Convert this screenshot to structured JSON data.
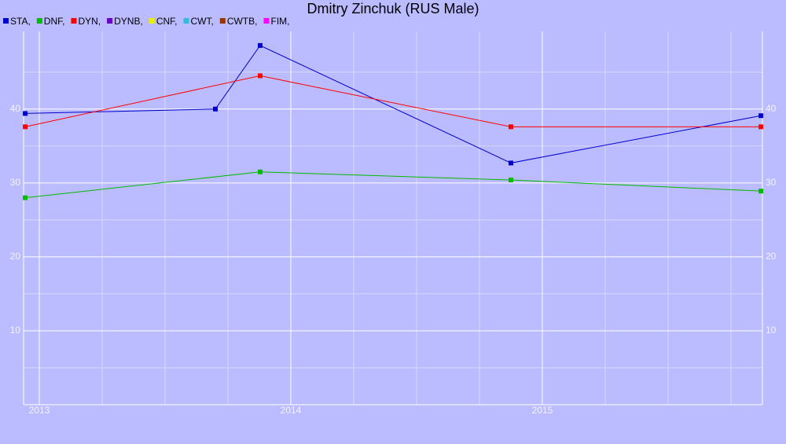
{
  "chart_data": {
    "type": "line",
    "title": "Dmitry Zinchuk (RUS Male)",
    "xlim": [
      2012.9375,
      2015.875
    ],
    "xticks": [
      2013,
      2014,
      2015
    ],
    "xminorticks": [
      2013.25,
      2013.5,
      2013.75,
      2014.25,
      2014.5,
      2014.75,
      2015.25,
      2015.5,
      2015.75
    ],
    "ylim": [
      0,
      50.5
    ],
    "yticks": [
      10,
      20,
      30,
      40
    ],
    "yminorticks": [
      5,
      15,
      25,
      35,
      45
    ],
    "grid": true,
    "legend": "top-left",
    "series": [
      {
        "name": "STA,",
        "color": "#0000cc",
        "x": [
          2012.944,
          2013.7,
          2013.878,
          2014.875,
          2015.869
        ],
        "values": [
          39.4,
          40.0,
          48.6,
          32.7,
          39.1
        ]
      },
      {
        "name": "DNF,",
        "color": "#00bb00",
        "x": [
          2012.944,
          2013.878,
          2014.875,
          2015.869
        ],
        "values": [
          28.0,
          31.5,
          30.4,
          28.9
        ]
      },
      {
        "name": "DYN,",
        "color": "#ff0000",
        "x": [
          2012.944,
          2013.878,
          2014.875,
          2015.869
        ],
        "values": [
          37.6,
          44.5,
          37.6,
          37.6
        ]
      },
      {
        "name": "DYNB,",
        "color": "#6600cc",
        "x": [],
        "values": []
      },
      {
        "name": "CNF,",
        "color": "#eeee00",
        "x": [],
        "values": []
      },
      {
        "name": "CWT,",
        "color": "#33bbdd",
        "x": [],
        "values": []
      },
      {
        "name": "CWTB,",
        "color": "#993300",
        "x": [],
        "values": []
      },
      {
        "name": "FIM,",
        "color": "#ff00ff",
        "x": [],
        "values": []
      }
    ]
  }
}
